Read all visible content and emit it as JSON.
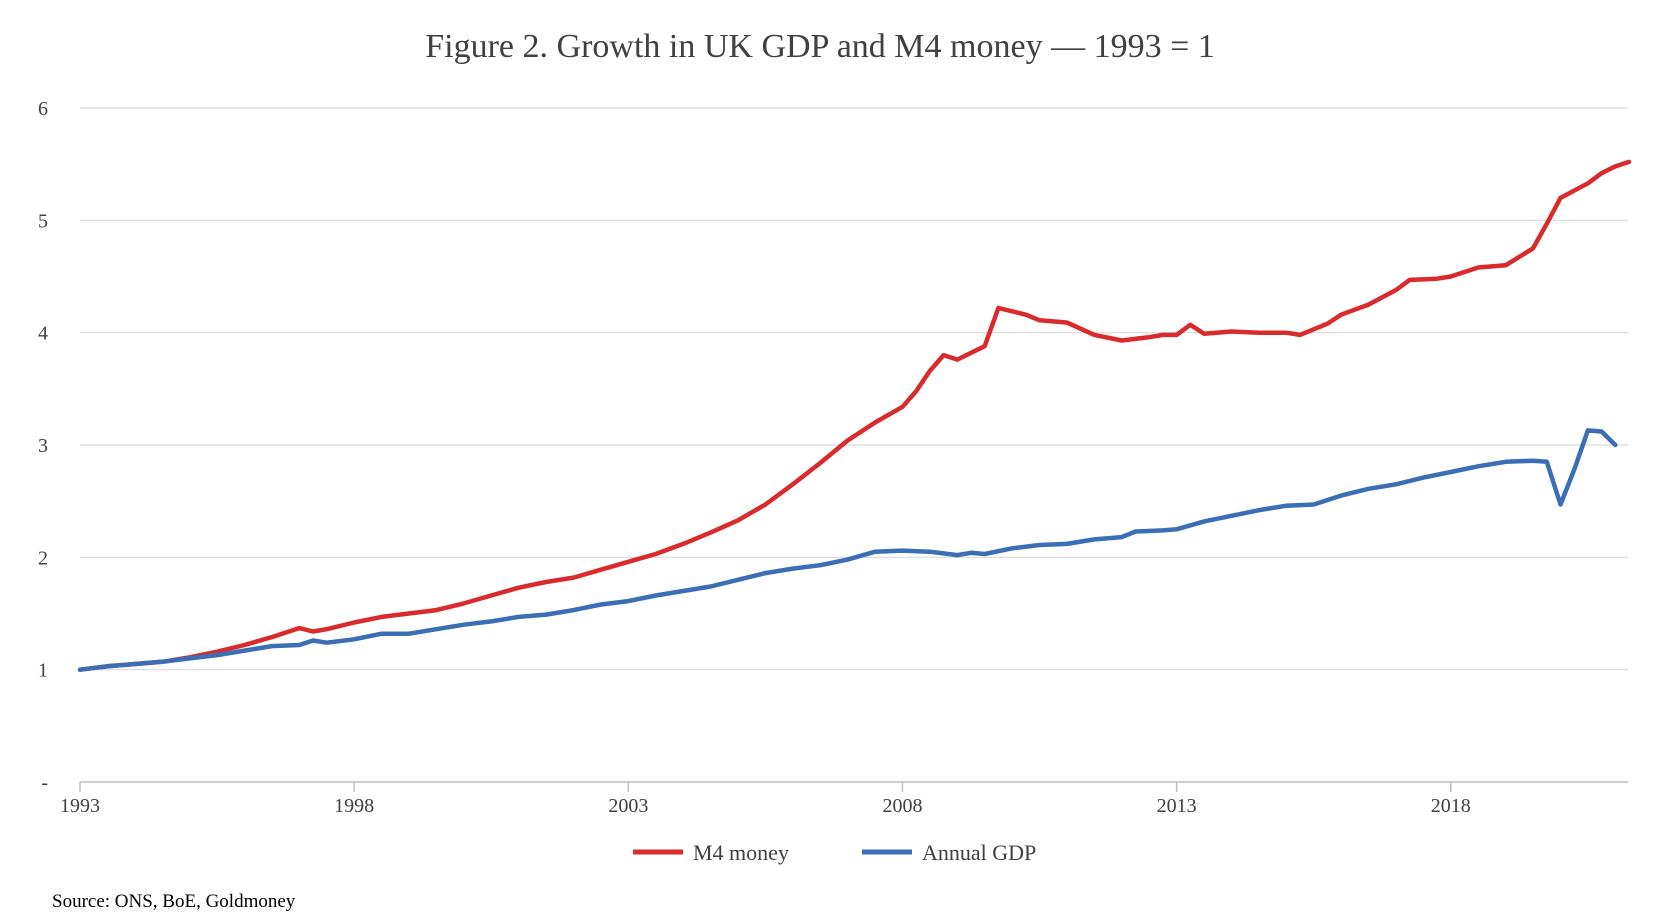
{
  "chart_data": {
    "type": "line",
    "title": "Figure 2. Growth in UK GDP and M4 money — 1993 = 1",
    "xlabel": "",
    "ylabel": "",
    "xlim": [
      1993,
      2021.25
    ],
    "ylim": [
      0,
      6
    ],
    "y_ticks": [
      {
        "value": 0,
        "label": "-"
      },
      {
        "value": 1,
        "label": "1"
      },
      {
        "value": 2,
        "label": "2"
      },
      {
        "value": 3,
        "label": "3"
      },
      {
        "value": 4,
        "label": "4"
      },
      {
        "value": 5,
        "label": "5"
      },
      {
        "value": 6,
        "label": "6"
      }
    ],
    "x_ticks": [
      {
        "value": 1993,
        "label": "1993"
      },
      {
        "value": 1998,
        "label": "1998"
      },
      {
        "value": 2003,
        "label": "2003"
      },
      {
        "value": 2008,
        "label": "2008"
      },
      {
        "value": 2013,
        "label": "2013"
      },
      {
        "value": 2018,
        "label": "2018"
      }
    ],
    "grid": "horizontal",
    "legend_position": "bottom",
    "series": [
      {
        "name": "M4 money",
        "color": "#d92b2b",
        "points": [
          [
            1993.0,
            1.0
          ],
          [
            1993.5,
            1.03
          ],
          [
            1994.0,
            1.05
          ],
          [
            1994.5,
            1.07
          ],
          [
            1995.0,
            1.11
          ],
          [
            1995.5,
            1.16
          ],
          [
            1996.0,
            1.22
          ],
          [
            1996.5,
            1.29
          ],
          [
            1997.0,
            1.37
          ],
          [
            1997.25,
            1.34
          ],
          [
            1997.5,
            1.36
          ],
          [
            1998.0,
            1.42
          ],
          [
            1998.5,
            1.47
          ],
          [
            1999.0,
            1.5
          ],
          [
            1999.5,
            1.53
          ],
          [
            2000.0,
            1.59
          ],
          [
            2000.5,
            1.66
          ],
          [
            2001.0,
            1.73
          ],
          [
            2001.5,
            1.78
          ],
          [
            2002.0,
            1.82
          ],
          [
            2002.5,
            1.89
          ],
          [
            2003.0,
            1.96
          ],
          [
            2003.5,
            2.03
          ],
          [
            2004.0,
            2.12
          ],
          [
            2004.5,
            2.22
          ],
          [
            2005.0,
            2.33
          ],
          [
            2005.5,
            2.47
          ],
          [
            2006.0,
            2.65
          ],
          [
            2006.5,
            2.84
          ],
          [
            2007.0,
            3.04
          ],
          [
            2007.5,
            3.2
          ],
          [
            2008.0,
            3.34
          ],
          [
            2008.25,
            3.48
          ],
          [
            2008.5,
            3.66
          ],
          [
            2008.75,
            3.8
          ],
          [
            2009.0,
            3.76
          ],
          [
            2009.25,
            3.82
          ],
          [
            2009.5,
            3.88
          ],
          [
            2009.75,
            4.22
          ],
          [
            2010.0,
            4.19
          ],
          [
            2010.25,
            4.16
          ],
          [
            2010.5,
            4.11
          ],
          [
            2010.75,
            4.1
          ],
          [
            2011.0,
            4.09
          ],
          [
            2011.5,
            3.98
          ],
          [
            2012.0,
            3.93
          ],
          [
            2012.5,
            3.96
          ],
          [
            2012.75,
            3.98
          ],
          [
            2013.0,
            3.98
          ],
          [
            2013.25,
            4.07
          ],
          [
            2013.5,
            3.99
          ],
          [
            2014.0,
            4.01
          ],
          [
            2014.5,
            4.0
          ],
          [
            2015.0,
            4.0
          ],
          [
            2015.25,
            3.98
          ],
          [
            2015.75,
            4.08
          ],
          [
            2016.0,
            4.16
          ],
          [
            2016.5,
            4.25
          ],
          [
            2017.0,
            4.38
          ],
          [
            2017.25,
            4.47
          ],
          [
            2017.75,
            4.48
          ],
          [
            2018.0,
            4.5
          ],
          [
            2018.5,
            4.58
          ],
          [
            2019.0,
            4.6
          ],
          [
            2019.5,
            4.75
          ],
          [
            2019.75,
            4.97
          ],
          [
            2020.0,
            5.2
          ],
          [
            2020.5,
            5.33
          ],
          [
            2020.75,
            5.42
          ],
          [
            2021.0,
            5.48
          ],
          [
            2021.25,
            5.52
          ]
        ]
      },
      {
        "name": "Annual GDP",
        "color": "#3a6fb5",
        "points": [
          [
            1993.0,
            1.0
          ],
          [
            1993.5,
            1.03
          ],
          [
            1994.0,
            1.05
          ],
          [
            1994.5,
            1.07
          ],
          [
            1995.0,
            1.1
          ],
          [
            1995.5,
            1.13
          ],
          [
            1996.0,
            1.17
          ],
          [
            1996.5,
            1.21
          ],
          [
            1997.0,
            1.22
          ],
          [
            1997.25,
            1.26
          ],
          [
            1997.5,
            1.24
          ],
          [
            1998.0,
            1.27
          ],
          [
            1998.5,
            1.32
          ],
          [
            1999.0,
            1.32
          ],
          [
            1999.5,
            1.36
          ],
          [
            2000.0,
            1.4
          ],
          [
            2000.5,
            1.43
          ],
          [
            2001.0,
            1.47
          ],
          [
            2001.5,
            1.49
          ],
          [
            2002.0,
            1.53
          ],
          [
            2002.5,
            1.58
          ],
          [
            2003.0,
            1.61
          ],
          [
            2003.5,
            1.66
          ],
          [
            2004.0,
            1.7
          ],
          [
            2004.5,
            1.74
          ],
          [
            2005.0,
            1.8
          ],
          [
            2005.5,
            1.86
          ],
          [
            2006.0,
            1.9
          ],
          [
            2006.5,
            1.93
          ],
          [
            2007.0,
            1.98
          ],
          [
            2007.5,
            2.05
          ],
          [
            2008.0,
            2.06
          ],
          [
            2008.5,
            2.05
          ],
          [
            2009.0,
            2.02
          ],
          [
            2009.25,
            2.04
          ],
          [
            2009.5,
            2.03
          ],
          [
            2010.0,
            2.08
          ],
          [
            2010.5,
            2.11
          ],
          [
            2011.0,
            2.12
          ],
          [
            2011.5,
            2.16
          ],
          [
            2012.0,
            2.18
          ],
          [
            2012.25,
            2.23
          ],
          [
            2012.75,
            2.24
          ],
          [
            2013.0,
            2.25
          ],
          [
            2013.5,
            2.32
          ],
          [
            2014.0,
            2.37
          ],
          [
            2014.5,
            2.42
          ],
          [
            2015.0,
            2.46
          ],
          [
            2015.5,
            2.47
          ],
          [
            2016.0,
            2.55
          ],
          [
            2016.5,
            2.61
          ],
          [
            2017.0,
            2.65
          ],
          [
            2017.5,
            2.71
          ],
          [
            2018.0,
            2.76
          ],
          [
            2018.5,
            2.81
          ],
          [
            2019.0,
            2.85
          ],
          [
            2019.5,
            2.86
          ],
          [
            2019.75,
            2.85
          ],
          [
            2020.0,
            2.47
          ],
          [
            2020.25,
            2.78
          ],
          [
            2020.5,
            3.13
          ],
          [
            2020.75,
            3.12
          ],
          [
            2021.0,
            3.0
          ]
        ]
      }
    ],
    "source": "Source: ONS, BoE, Goldmoney"
  }
}
